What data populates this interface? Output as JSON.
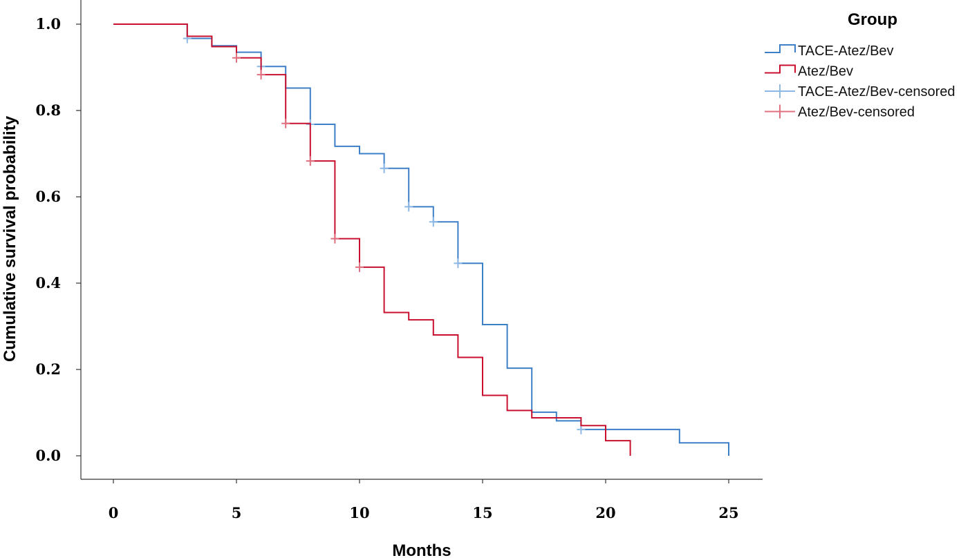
{
  "chart_data": {
    "type": "line",
    "subtype": "kaplan-meier",
    "xlabel": "Months",
    "ylabel": "Cumulative survival probability",
    "xlim": [
      0,
      25
    ],
    "ylim": [
      0,
      1.0
    ],
    "x_ticks": [
      "0",
      "5",
      "10",
      "15",
      "20",
      "25"
    ],
    "y_ticks": [
      "0.0",
      "0.2",
      "0.4",
      "0.6",
      "0.8",
      "1.0"
    ],
    "grid": false,
    "legend": {
      "title": "Group",
      "position": "top-right",
      "entries": [
        "TACE-Atez/Bev",
        "Atez/Bev",
        "TACE-Atez/Bev-censored",
        "Atez/Bev-censored"
      ]
    },
    "series": [
      {
        "name": "TACE-Atez/Bev",
        "color": "#3d7fc7",
        "censor_color": "#8db8e6",
        "steps": [
          [
            0,
            1.0
          ],
          [
            3,
            0.967
          ],
          [
            4,
            0.95
          ],
          [
            5,
            0.935
          ],
          [
            6,
            0.902
          ],
          [
            7,
            0.852
          ],
          [
            8,
            0.768
          ],
          [
            9,
            0.717
          ],
          [
            10,
            0.7
          ],
          [
            11,
            0.666
          ],
          [
            12,
            0.577
          ],
          [
            13,
            0.542
          ],
          [
            14,
            0.446
          ],
          [
            15,
            0.304
          ],
          [
            16,
            0.203
          ],
          [
            17,
            0.101
          ],
          [
            18,
            0.081
          ],
          [
            19,
            0.061
          ],
          [
            23,
            0.03
          ],
          [
            25,
            0.0
          ]
        ],
        "censored": [
          [
            3,
            0.967
          ],
          [
            6,
            0.902
          ],
          [
            8,
            0.768
          ],
          [
            11,
            0.666
          ],
          [
            12,
            0.577
          ],
          [
            13,
            0.542
          ],
          [
            14,
            0.446
          ],
          [
            19,
            0.061
          ]
        ]
      },
      {
        "name": "Atez/Bev",
        "color": "#c8102e",
        "censor_color": "#e0707f",
        "steps": [
          [
            0,
            1.0
          ],
          [
            3,
            0.972
          ],
          [
            4,
            0.948
          ],
          [
            5,
            0.922
          ],
          [
            6,
            0.883
          ],
          [
            7,
            0.77
          ],
          [
            8,
            0.683
          ],
          [
            9,
            0.503
          ],
          [
            10,
            0.437
          ],
          [
            11,
            0.332
          ],
          [
            12,
            0.315
          ],
          [
            13,
            0.28
          ],
          [
            14,
            0.228
          ],
          [
            15,
            0.14
          ],
          [
            16,
            0.105
          ],
          [
            17,
            0.088
          ],
          [
            19,
            0.07
          ],
          [
            20,
            0.035
          ],
          [
            21,
            0.0
          ]
        ],
        "censored": [
          [
            5,
            0.922
          ],
          [
            6,
            0.883
          ],
          [
            7,
            0.77
          ],
          [
            8,
            0.683
          ],
          [
            9,
            0.503
          ],
          [
            10,
            0.437
          ]
        ]
      }
    ]
  }
}
